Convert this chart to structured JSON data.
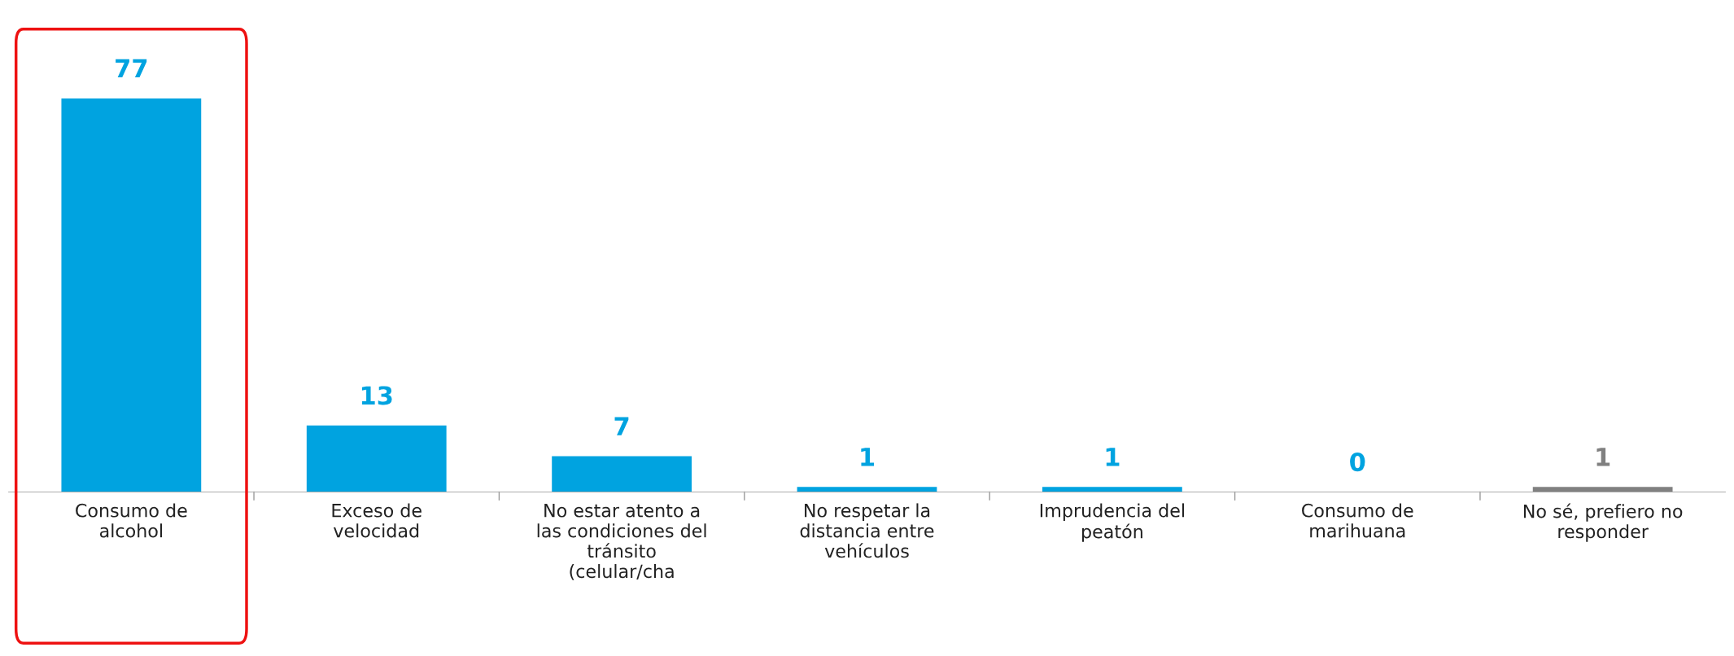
{
  "chart_data": {
    "type": "bar",
    "categories": [
      "Consumo de\nalcohol",
      "Exceso de\nvelocidad",
      "No estar atento a\nlas condiciones del\ntránsito\n(celular/cha",
      "No respetar la\ndistancia entre\nvehículos",
      "Imprudencia del\npeatón",
      "Consumo de\nmarihuana",
      "No sé, prefiero no\nresponder"
    ],
    "values": [
      77,
      13,
      7,
      1,
      1,
      0,
      1
    ],
    "colors": [
      "#00a3e0",
      "#00a3e0",
      "#00a3e0",
      "#00a3e0",
      "#00a3e0",
      "#00a3e0",
      "#808080"
    ],
    "data_labels": true,
    "grid": false,
    "legend": false,
    "tick_labels": "x"
  }
}
